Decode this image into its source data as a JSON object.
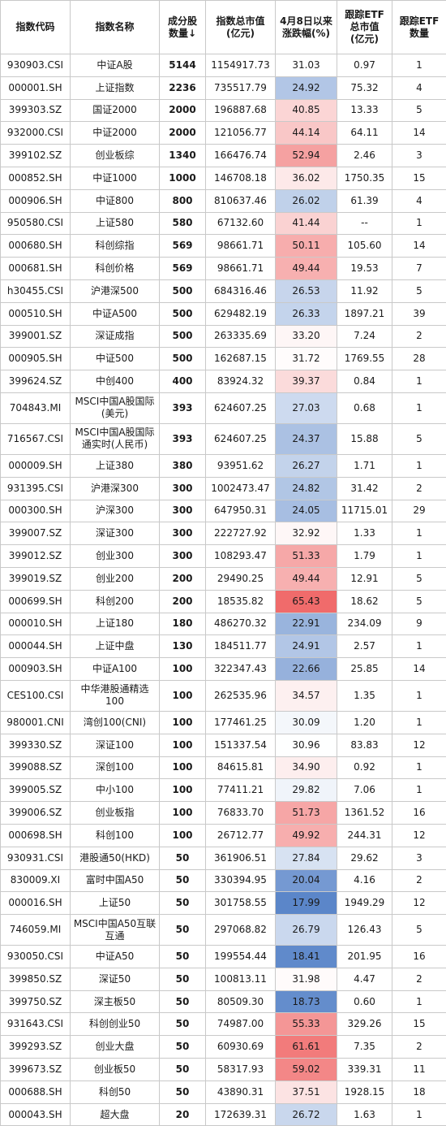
{
  "columns": [
    {
      "key": "code",
      "lines": [
        "指数代码"
      ]
    },
    {
      "key": "name",
      "lines": [
        "指数名称"
      ]
    },
    {
      "key": "count",
      "lines": [
        "成分股",
        "数量↓"
      ]
    },
    {
      "key": "mcap",
      "lines": [
        "指数总市值",
        "(亿元)"
      ]
    },
    {
      "key": "chg",
      "lines": [
        "4月8日以来",
        "涨跌幅(%)"
      ]
    },
    {
      "key": "etf_cap",
      "lines": [
        "跟踪ETF",
        "总市值",
        "(亿元)"
      ]
    },
    {
      "key": "etf_n",
      "lines": [
        "跟踪ETF",
        "数量"
      ]
    }
  ],
  "colors": {
    "high": "#f06b6b",
    "mid": "#ffffff",
    "low": "#5b86c9",
    "border": "#c9c9c9"
  },
  "chg_scale": {
    "min": 17.99,
    "mid": 31.0,
    "max": 65.43
  },
  "rows": [
    {
      "code": "930903.CSI",
      "name": "中证A股",
      "count": "5144",
      "mcap": "1154917.73",
      "chg": "31.03",
      "etf_cap": "0.97",
      "etf_n": "1"
    },
    {
      "code": "000001.SH",
      "name": "上证指数",
      "count": "2236",
      "mcap": "735517.79",
      "chg": "24.92",
      "etf_cap": "75.32",
      "etf_n": "4"
    },
    {
      "code": "399303.SZ",
      "name": "国证2000",
      "count": "2000",
      "mcap": "196887.68",
      "chg": "40.85",
      "etf_cap": "13.33",
      "etf_n": "5"
    },
    {
      "code": "932000.CSI",
      "name": "中证2000",
      "count": "2000",
      "mcap": "121056.77",
      "chg": "44.14",
      "etf_cap": "64.11",
      "etf_n": "14"
    },
    {
      "code": "399102.SZ",
      "name": "创业板综",
      "count": "1340",
      "mcap": "166476.74",
      "chg": "52.94",
      "etf_cap": "2.46",
      "etf_n": "3"
    },
    {
      "code": "000852.SH",
      "name": "中证1000",
      "count": "1000",
      "mcap": "146708.18",
      "chg": "36.02",
      "etf_cap": "1750.35",
      "etf_n": "15"
    },
    {
      "code": "000906.SH",
      "name": "中证800",
      "count": "800",
      "mcap": "810637.46",
      "chg": "26.02",
      "etf_cap": "61.39",
      "etf_n": "4"
    },
    {
      "code": "950580.CSI",
      "name": "上证580",
      "count": "580",
      "mcap": "67132.60",
      "chg": "41.44",
      "etf_cap": "--",
      "etf_n": "1"
    },
    {
      "code": "000680.SH",
      "name": "科创综指",
      "count": "569",
      "mcap": "98661.71",
      "chg": "50.11",
      "etf_cap": "105.60",
      "etf_n": "14"
    },
    {
      "code": "000681.SH",
      "name": "科创价格",
      "count": "569",
      "mcap": "98661.71",
      "chg": "49.44",
      "etf_cap": "19.53",
      "etf_n": "7"
    },
    {
      "code": "h30455.CSI",
      "name": "沪港深500",
      "count": "500",
      "mcap": "684316.46",
      "chg": "26.53",
      "etf_cap": "11.92",
      "etf_n": "5"
    },
    {
      "code": "000510.SH",
      "name": "中证A500",
      "count": "500",
      "mcap": "629482.19",
      "chg": "26.33",
      "etf_cap": "1897.21",
      "etf_n": "39"
    },
    {
      "code": "399001.SZ",
      "name": "深证成指",
      "count": "500",
      "mcap": "263335.69",
      "chg": "33.20",
      "etf_cap": "7.24",
      "etf_n": "2"
    },
    {
      "code": "000905.SH",
      "name": "中证500",
      "count": "500",
      "mcap": "162687.15",
      "chg": "31.72",
      "etf_cap": "1769.55",
      "etf_n": "28"
    },
    {
      "code": "399624.SZ",
      "name": "中创400",
      "count": "400",
      "mcap": "83924.32",
      "chg": "39.37",
      "etf_cap": "0.84",
      "etf_n": "1"
    },
    {
      "code": "704843.MI",
      "name": "MSCI中国A股国际(美元)",
      "name_lines": [
        "MSCI中国A股国际",
        "(美元)"
      ],
      "count": "393",
      "mcap": "624607.25",
      "chg": "27.03",
      "etf_cap": "0.68",
      "etf_n": "1"
    },
    {
      "code": "716567.CSI",
      "name": "MSCI中国A股国际通实时(人民币)",
      "name_lines": [
        "MSCI中国A股国际",
        "通实时(人民币)"
      ],
      "count": "393",
      "mcap": "624607.25",
      "chg": "24.37",
      "etf_cap": "15.88",
      "etf_n": "5"
    },
    {
      "code": "000009.SH",
      "name": "上证380",
      "count": "380",
      "mcap": "93951.62",
      "chg": "26.27",
      "etf_cap": "1.71",
      "etf_n": "1"
    },
    {
      "code": "931395.CSI",
      "name": "沪港深300",
      "count": "300",
      "mcap": "1002473.47",
      "chg": "24.82",
      "etf_cap": "31.42",
      "etf_n": "2"
    },
    {
      "code": "000300.SH",
      "name": "沪深300",
      "count": "300",
      "mcap": "647950.31",
      "chg": "24.05",
      "etf_cap": "11715.01",
      "etf_n": "29"
    },
    {
      "code": "399007.SZ",
      "name": "深证300",
      "count": "300",
      "mcap": "222727.92",
      "chg": "32.92",
      "etf_cap": "1.33",
      "etf_n": "1"
    },
    {
      "code": "399012.SZ",
      "name": "创业300",
      "count": "300",
      "mcap": "108293.47",
      "chg": "51.33",
      "etf_cap": "1.79",
      "etf_n": "1"
    },
    {
      "code": "399019.SZ",
      "name": "创业200",
      "count": "200",
      "mcap": "29490.25",
      "chg": "49.44",
      "etf_cap": "12.91",
      "etf_n": "5"
    },
    {
      "code": "000699.SH",
      "name": "科创200",
      "count": "200",
      "mcap": "18535.82",
      "chg": "65.43",
      "etf_cap": "18.62",
      "etf_n": "5"
    },
    {
      "code": "000010.SH",
      "name": "上证180",
      "count": "180",
      "mcap": "486270.32",
      "chg": "22.91",
      "etf_cap": "234.09",
      "etf_n": "9"
    },
    {
      "code": "000044.SH",
      "name": "上证中盘",
      "count": "130",
      "mcap": "184511.77",
      "chg": "24.91",
      "etf_cap": "2.57",
      "etf_n": "1"
    },
    {
      "code": "000903.SH",
      "name": "中证A100",
      "count": "100",
      "mcap": "322347.43",
      "chg": "22.66",
      "etf_cap": "25.85",
      "etf_n": "14"
    },
    {
      "code": "CES100.CSI",
      "name": "中华港股通精选100",
      "name_lines": [
        "中华港股通精选",
        "100"
      ],
      "count": "100",
      "mcap": "262535.96",
      "chg": "34.57",
      "etf_cap": "1.35",
      "etf_n": "1"
    },
    {
      "code": "980001.CNI",
      "name": "湾创100(CNI)",
      "count": "100",
      "mcap": "177461.25",
      "chg": "30.09",
      "etf_cap": "1.20",
      "etf_n": "1"
    },
    {
      "code": "399330.SZ",
      "name": "深证100",
      "count": "100",
      "mcap": "151337.54",
      "chg": "30.96",
      "etf_cap": "83.83",
      "etf_n": "12"
    },
    {
      "code": "399088.SZ",
      "name": "深创100",
      "count": "100",
      "mcap": "84615.81",
      "chg": "34.90",
      "etf_cap": "0.92",
      "etf_n": "1"
    },
    {
      "code": "399005.SZ",
      "name": "中小100",
      "count": "100",
      "mcap": "77411.21",
      "chg": "29.82",
      "etf_cap": "7.06",
      "etf_n": "1"
    },
    {
      "code": "399006.SZ",
      "name": "创业板指",
      "count": "100",
      "mcap": "76833.70",
      "chg": "51.73",
      "etf_cap": "1361.52",
      "etf_n": "16"
    },
    {
      "code": "000698.SH",
      "name": "科创100",
      "count": "100",
      "mcap": "26712.77",
      "chg": "49.92",
      "etf_cap": "244.31",
      "etf_n": "12"
    },
    {
      "code": "930931.CSI",
      "name": "港股通50(HKD)",
      "count": "50",
      "mcap": "361906.51",
      "chg": "27.84",
      "etf_cap": "29.62",
      "etf_n": "3"
    },
    {
      "code": "830009.XI",
      "name": "富时中国A50",
      "count": "50",
      "mcap": "330394.95",
      "chg": "20.04",
      "etf_cap": "4.16",
      "etf_n": "2"
    },
    {
      "code": "000016.SH",
      "name": "上证50",
      "count": "50",
      "mcap": "301758.55",
      "chg": "17.99",
      "etf_cap": "1949.29",
      "etf_n": "12"
    },
    {
      "code": "746059.MI",
      "name": "MSCI中国A50互联互通",
      "name_lines": [
        "MSCI中国A50互联",
        "互通"
      ],
      "count": "50",
      "mcap": "297068.82",
      "chg": "26.79",
      "etf_cap": "126.43",
      "etf_n": "5"
    },
    {
      "code": "930050.CSI",
      "name": "中证A50",
      "count": "50",
      "mcap": "199554.44",
      "chg": "18.41",
      "etf_cap": "201.95",
      "etf_n": "16"
    },
    {
      "code": "399850.SZ",
      "name": "深证50",
      "count": "50",
      "mcap": "100813.11",
      "chg": "31.98",
      "etf_cap": "4.47",
      "etf_n": "2"
    },
    {
      "code": "399750.SZ",
      "name": "深主板50",
      "count": "50",
      "mcap": "80509.30",
      "chg": "18.73",
      "etf_cap": "0.60",
      "etf_n": "1"
    },
    {
      "code": "931643.CSI",
      "name": "科创创业50",
      "count": "50",
      "mcap": "74987.00",
      "chg": "55.33",
      "etf_cap": "329.26",
      "etf_n": "15"
    },
    {
      "code": "399293.SZ",
      "name": "创业大盘",
      "count": "50",
      "mcap": "60930.69",
      "chg": "61.61",
      "etf_cap": "7.35",
      "etf_n": "2"
    },
    {
      "code": "399673.SZ",
      "name": "创业板50",
      "count": "50",
      "mcap": "58317.93",
      "chg": "59.02",
      "etf_cap": "339.31",
      "etf_n": "11"
    },
    {
      "code": "000688.SH",
      "name": "科创50",
      "count": "50",
      "mcap": "43890.31",
      "chg": "37.51",
      "etf_cap": "1928.15",
      "etf_n": "18"
    },
    {
      "code": "000043.SH",
      "name": "超大盘",
      "count": "20",
      "mcap": "172639.31",
      "chg": "26.72",
      "etf_cap": "1.63",
      "etf_n": "1"
    }
  ]
}
